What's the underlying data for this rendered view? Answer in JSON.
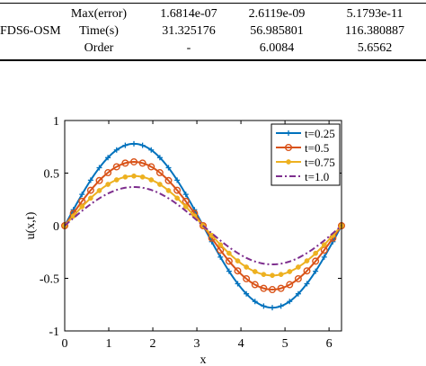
{
  "table": {
    "header_fragment": [
      "…",
      "…",
      "…"
    ],
    "method": "FDS6-OSM",
    "rows": [
      {
        "label": "Max(error)",
        "values": [
          "1.6814e-07",
          "2.6119e-09",
          "5.1793e-11"
        ]
      },
      {
        "label": "Time(s)",
        "values": [
          "31.325176",
          "56.985801",
          "116.380887"
        ]
      },
      {
        "label": "Order",
        "values": [
          "-",
          "6.0084",
          "5.6562"
        ]
      }
    ]
  },
  "chart_data": {
    "type": "line",
    "xlabel": "x",
    "ylabel": "u(x,t)",
    "xlim": [
      0,
      6.2832
    ],
    "ylim": [
      -1,
      1
    ],
    "xticks": [
      "0",
      "1",
      "2",
      "3",
      "4",
      "5",
      "6"
    ],
    "yticks": [
      "1",
      "0.5",
      "0",
      "-0.5",
      "-1"
    ],
    "grid": false,
    "legend_position": "top-right",
    "series": [
      {
        "name": "t=0.25",
        "color": "#0072BD",
        "marker": "plus",
        "amplitude": 0.7788,
        "x": [
          0,
          0.1963,
          0.3927,
          0.589,
          0.7854,
          0.9817,
          1.1781,
          1.3744,
          1.5708,
          1.7671,
          1.9635,
          2.1598,
          2.3562,
          2.5525,
          2.7489,
          2.9452,
          3.1416,
          3.3379,
          3.5343,
          3.7306,
          3.927,
          4.1233,
          4.3197,
          4.516,
          4.7124,
          4.9087,
          5.1051,
          5.3014,
          5.4978,
          5.6941,
          5.8905,
          6.0868,
          6.2832
        ],
        "y": [
          0,
          0.152,
          0.298,
          0.433,
          0.551,
          0.647,
          0.72,
          0.764,
          0.779,
          0.764,
          0.72,
          0.647,
          0.551,
          0.433,
          0.298,
          0.152,
          0,
          -0.152,
          -0.298,
          -0.433,
          -0.551,
          -0.647,
          -0.72,
          -0.764,
          -0.779,
          -0.764,
          -0.72,
          -0.647,
          -0.551,
          -0.433,
          -0.298,
          -0.152,
          0
        ]
      },
      {
        "name": "t=0.5",
        "color": "#D95319",
        "marker": "circle",
        "amplitude": 0.6065,
        "x": [
          0,
          0.1963,
          0.3927,
          0.589,
          0.7854,
          0.9817,
          1.1781,
          1.3744,
          1.5708,
          1.7671,
          1.9635,
          2.1598,
          2.3562,
          2.5525,
          2.7489,
          2.9452,
          3.1416,
          3.3379,
          3.5343,
          3.7306,
          3.927,
          4.1233,
          4.3197,
          4.516,
          4.7124,
          4.9087,
          5.1051,
          5.3014,
          5.4978,
          5.6941,
          5.8905,
          6.0868,
          6.2832
        ],
        "y": [
          0,
          0.118,
          0.232,
          0.337,
          0.429,
          0.504,
          0.56,
          0.595,
          0.607,
          0.595,
          0.56,
          0.504,
          0.429,
          0.337,
          0.232,
          0.118,
          0,
          -0.118,
          -0.232,
          -0.337,
          -0.429,
          -0.504,
          -0.56,
          -0.595,
          -0.607,
          -0.595,
          -0.56,
          -0.504,
          -0.429,
          -0.337,
          -0.232,
          -0.118,
          0
        ]
      },
      {
        "name": "t=0.75",
        "color": "#EDB120",
        "marker": "dot",
        "amplitude": 0.4724,
        "x": [
          0,
          0.1963,
          0.3927,
          0.589,
          0.7854,
          0.9817,
          1.1781,
          1.3744,
          1.5708,
          1.7671,
          1.9635,
          2.1598,
          2.3562,
          2.5525,
          2.7489,
          2.9452,
          3.1416,
          3.3379,
          3.5343,
          3.7306,
          3.927,
          4.1233,
          4.3197,
          4.516,
          4.7124,
          4.9087,
          5.1051,
          5.3014,
          5.4978,
          5.6941,
          5.8905,
          6.0868,
          6.2832
        ],
        "y": [
          0,
          0.092,
          0.181,
          0.262,
          0.334,
          0.393,
          0.436,
          0.463,
          0.472,
          0.463,
          0.436,
          0.393,
          0.334,
          0.262,
          0.181,
          0.092,
          0,
          -0.092,
          -0.181,
          -0.262,
          -0.334,
          -0.393,
          -0.436,
          -0.463,
          -0.472,
          -0.463,
          -0.436,
          -0.393,
          -0.334,
          -0.262,
          -0.181,
          -0.092,
          0
        ]
      },
      {
        "name": "t=1.0",
        "color": "#7E2F8E",
        "marker": "none",
        "dash": "dashdot",
        "amplitude": 0.3679,
        "x": [
          0,
          0.1963,
          0.3927,
          0.589,
          0.7854,
          0.9817,
          1.1781,
          1.3744,
          1.5708,
          1.7671,
          1.9635,
          2.1598,
          2.3562,
          2.5525,
          2.7489,
          2.9452,
          3.1416,
          3.3379,
          3.5343,
          3.7306,
          3.927,
          4.1233,
          4.3197,
          4.516,
          4.7124,
          4.9087,
          5.1051,
          5.3014,
          5.4978,
          5.6941,
          5.8905,
          6.0868,
          6.2832
        ],
        "y": [
          0,
          0.072,
          0.141,
          0.204,
          0.26,
          0.306,
          0.34,
          0.361,
          0.368,
          0.361,
          0.34,
          0.306,
          0.26,
          0.204,
          0.141,
          0.072,
          0,
          -0.072,
          -0.141,
          -0.204,
          -0.26,
          -0.306,
          -0.34,
          -0.361,
          -0.368,
          -0.361,
          -0.34,
          -0.306,
          -0.26,
          -0.204,
          -0.141,
          -0.072,
          0
        ]
      }
    ]
  }
}
